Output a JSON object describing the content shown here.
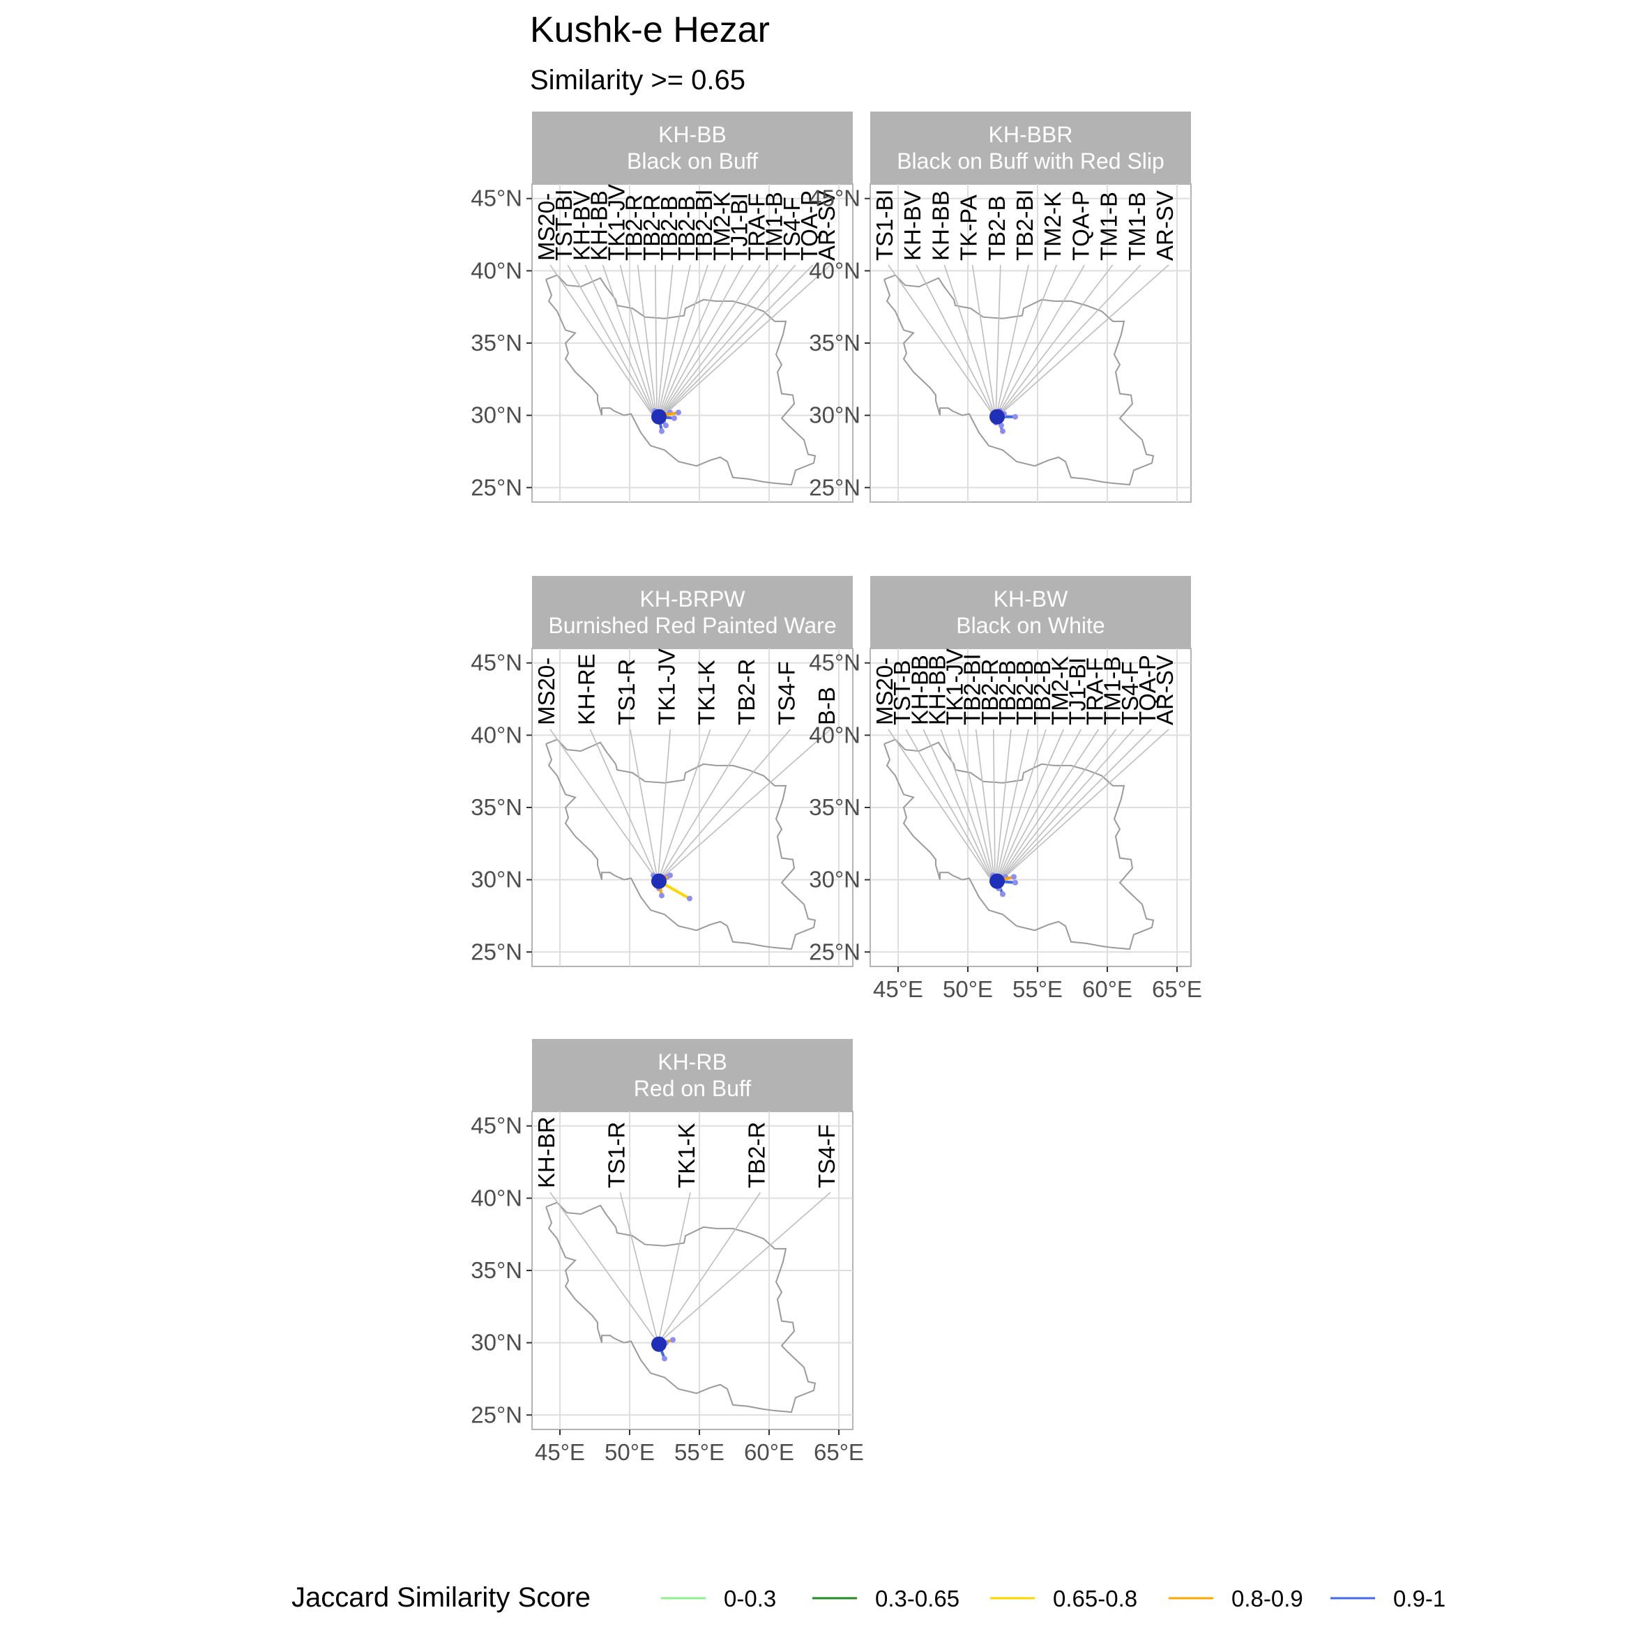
{
  "chart_data": {
    "type": "map-network",
    "title": "Kushk-e Hezar",
    "subtitle": "Similarity >= 0.65",
    "x_ticks": [
      "45°E",
      "50°E",
      "55°E",
      "60°E",
      "65°E"
    ],
    "y_ticks": [
      "45°N",
      "40°N",
      "35°N",
      "30°N",
      "25°N"
    ],
    "xlim": [
      43,
      66
    ],
    "ylim": [
      24,
      46
    ],
    "tick_lons": [
      45,
      50,
      55,
      60,
      65
    ],
    "tick_lats": [
      45,
      40,
      35,
      30,
      25
    ],
    "grid": true,
    "focal_site": {
      "lon": 52.1,
      "lat": 29.9
    },
    "legend": {
      "title": "Jaccard Similarity Score",
      "position": "bottom",
      "items": [
        {
          "label": "0-0.3",
          "color": "#90ee90"
        },
        {
          "label": "0.3-0.65",
          "color": "#228b22"
        },
        {
          "label": "0.65-0.8",
          "color": "#ffd700"
        },
        {
          "label": "0.8-0.9",
          "color": "#ffa500"
        },
        {
          "label": "0.9-1",
          "color": "#4169e1"
        }
      ]
    },
    "panels": [
      {
        "code": "KH-BB",
        "name": "Black on Buff",
        "labels": [
          "MS20-",
          "TST-BI",
          "KH-BV",
          "KH-BB",
          "TK1-JV",
          "TB2-R",
          "TB2-R",
          "TB2-B",
          "TB2-B",
          "TB2-BI",
          "TM2-K",
          "TJ1-BI",
          "TRA-F",
          "TM1-B",
          "TS4-F",
          "TQA-P",
          "AR-SV"
        ],
        "connections": [
          {
            "lon": 51.8,
            "lat": 30.3,
            "score": "0.9-1"
          },
          {
            "lon": 52.6,
            "lat": 29.3,
            "score": "0.9-1"
          },
          {
            "lon": 52.3,
            "lat": 28.9,
            "score": "0.9-1"
          },
          {
            "lon": 53.2,
            "lat": 29.8,
            "score": "0.9-1"
          },
          {
            "lon": 52.0,
            "lat": 29.6,
            "score": "0.9-1"
          },
          {
            "lon": 52.9,
            "lat": 30.2,
            "score": "0.8-0.9"
          },
          {
            "lon": 53.5,
            "lat": 30.2,
            "score": "0.8-0.9"
          },
          {
            "lon": 52.4,
            "lat": 29.6,
            "score": "0.8-0.9"
          },
          {
            "lon": 51.9,
            "lat": 30.0,
            "score": "0.65-0.8"
          }
        ]
      },
      {
        "code": "KH-BBR",
        "name": "Black on Buff with Red Slip",
        "labels": [
          "TS1-BI",
          "KH-BV",
          "KH-BB",
          "TK-PA",
          "TB2-B",
          "TB2-BI",
          "TM2-K",
          "TQA-P",
          "TM1-B",
          "TM1-B",
          "AR-SV"
        ],
        "connections": [
          {
            "lon": 52.5,
            "lat": 28.9,
            "score": "0.9-1"
          },
          {
            "lon": 53.4,
            "lat": 29.9,
            "score": "0.9-1"
          },
          {
            "lon": 52.0,
            "lat": 29.5,
            "score": "0.9-1"
          },
          {
            "lon": 52.6,
            "lat": 30.1,
            "score": "0.8-0.9"
          },
          {
            "lon": 52.4,
            "lat": 29.3,
            "score": "0.65-0.8"
          },
          {
            "lon": 52.3,
            "lat": 30.3,
            "score": "0.65-0.8"
          }
        ]
      },
      {
        "code": "KH-BRPW",
        "name": "Burnished Red Painted Ware",
        "labels": [
          "MS20-",
          "KH-RE",
          "TS1-R",
          "TK1-JV",
          "TK1-K",
          "TB2-R",
          "TS4-F",
          "B-B"
        ],
        "connections": [
          {
            "lon": 51.7,
            "lat": 30.3,
            "score": "0.9-1"
          },
          {
            "lon": 52.7,
            "lat": 30.2,
            "score": "0.9-1"
          },
          {
            "lon": 52.1,
            "lat": 29.4,
            "score": "0.8-0.9"
          },
          {
            "lon": 52.3,
            "lat": 28.9,
            "score": "0.8-0.9"
          },
          {
            "lon": 52.9,
            "lat": 30.3,
            "score": "0.8-0.9"
          },
          {
            "lon": 54.3,
            "lat": 28.7,
            "score": "0.65-0.8"
          }
        ]
      },
      {
        "code": "KH-BW",
        "name": "Black on White",
        "labels": [
          "MS20-",
          "TST-B",
          "KH-BB",
          "KH-BB",
          "TK1-JV",
          "TB2-BI",
          "TB2-R",
          "TB2-B",
          "TB2-B",
          "TB2-B",
          "TM2-K",
          "TJ1-BI",
          "TRA-F",
          "TM1-B",
          "TS4-F",
          "TQA-P",
          "AR-SV"
        ],
        "connections": [
          {
            "lon": 51.8,
            "lat": 30.3,
            "score": "0.9-1"
          },
          {
            "lon": 52.5,
            "lat": 29.0,
            "score": "0.9-1"
          },
          {
            "lon": 52.2,
            "lat": 29.4,
            "score": "0.9-1"
          },
          {
            "lon": 53.4,
            "lat": 29.8,
            "score": "0.9-1"
          },
          {
            "lon": 52.7,
            "lat": 30.2,
            "score": "0.8-0.9"
          },
          {
            "lon": 53.3,
            "lat": 30.2,
            "score": "0.8-0.9"
          },
          {
            "lon": 51.9,
            "lat": 30.0,
            "score": "0.65-0.8"
          }
        ]
      },
      {
        "code": "KH-RB",
        "name": "Red on Buff",
        "labels": [
          "KH-BR",
          "TS1-R",
          "TK1-K",
          "TB2-R",
          "TS4-F"
        ],
        "connections": [
          {
            "lon": 52.5,
            "lat": 28.9,
            "score": "0.9-1"
          },
          {
            "lon": 53.1,
            "lat": 30.2,
            "score": "0.8-0.9"
          },
          {
            "lon": 52.6,
            "lat": 30.0,
            "score": "0.8-0.9"
          },
          {
            "lon": 52.2,
            "lat": 29.6,
            "score": "0.9-1"
          }
        ]
      }
    ]
  }
}
